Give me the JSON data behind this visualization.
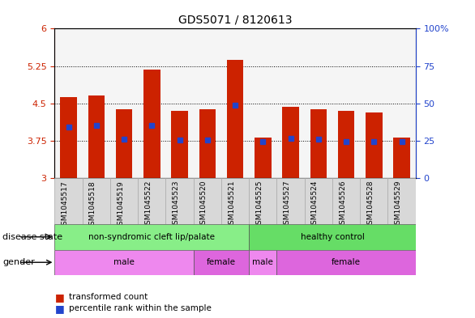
{
  "title": "GDS5071 / 8120613",
  "samples": [
    "GSM1045517",
    "GSM1045518",
    "GSM1045519",
    "GSM1045522",
    "GSM1045523",
    "GSM1045520",
    "GSM1045521",
    "GSM1045525",
    "GSM1045527",
    "GSM1045524",
    "GSM1045526",
    "GSM1045528",
    "GSM1045529"
  ],
  "bar_values": [
    4.63,
    4.65,
    4.38,
    5.17,
    4.35,
    4.38,
    5.38,
    3.82,
    4.43,
    4.38,
    4.35,
    4.32,
    3.82
  ],
  "percentile_values": [
    4.03,
    4.05,
    3.78,
    4.05,
    3.76,
    3.77,
    4.47,
    3.74,
    3.8,
    3.78,
    3.73,
    3.73,
    3.74
  ],
  "bar_bottom": 3.0,
  "ylim": [
    3.0,
    6.0
  ],
  "yticks_left": [
    3.0,
    3.75,
    4.5,
    5.25,
    6.0
  ],
  "ytick_labels_left": [
    "3",
    "3.75",
    "4.5",
    "5.25",
    "6"
  ],
  "yticks_right": [
    0,
    25,
    50,
    75,
    100
  ],
  "right_ylim": [
    0,
    100
  ],
  "bar_color": "#cc2200",
  "percentile_color": "#2244cc",
  "background_color": "#ffffff",
  "disease_state_groups": [
    {
      "label": "non-syndromic cleft lip/palate",
      "start": 0,
      "end": 7,
      "color": "#88ee88"
    },
    {
      "label": "healthy control",
      "start": 7,
      "end": 13,
      "color": "#66dd66"
    }
  ],
  "gender_groups": [
    {
      "label": "male",
      "start": 0,
      "end": 5,
      "color": "#ee88ee"
    },
    {
      "label": "female",
      "start": 5,
      "end": 7,
      "color": "#dd66dd"
    },
    {
      "label": "male",
      "start": 7,
      "end": 8,
      "color": "#ee88ee"
    },
    {
      "label": "female",
      "start": 8,
      "end": 13,
      "color": "#dd66dd"
    }
  ],
  "disease_state_label": "disease state",
  "gender_label": "gender",
  "legend_items": [
    "transformed count",
    "percentile rank within the sample"
  ]
}
